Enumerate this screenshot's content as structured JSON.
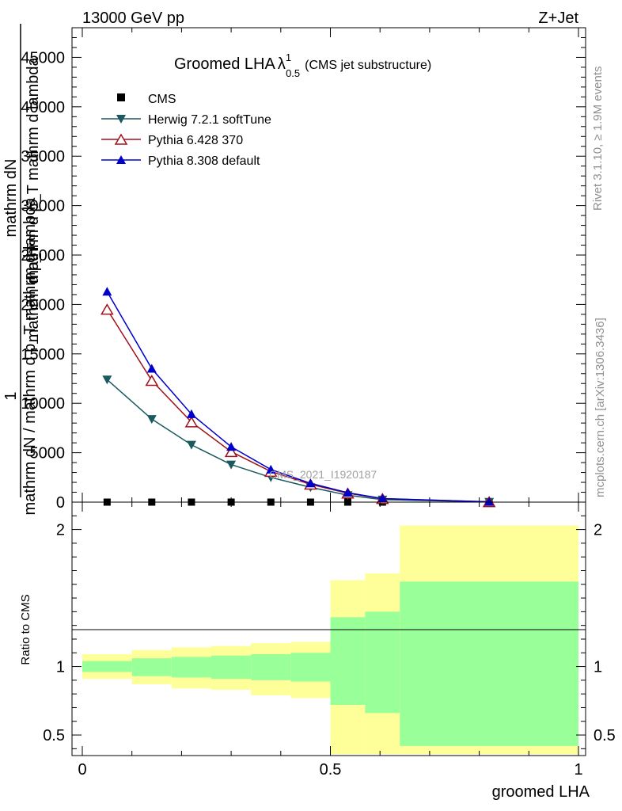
{
  "header": {
    "left": "13000 GeV pp",
    "right": "Z+Jet"
  },
  "chart_data": [
    {
      "type": "line",
      "title": "Groomed LHA",
      "title_lambda": "λ",
      "title_sup": "1",
      "title_sub": "0.5",
      "subtitle": "(CMS jet substructure)",
      "ylabel_lines": [
        "mathrm dN",
        "mathrm d p_T mathrm d lambda",
        "1",
        "mathrm dN / mathrm d p_T mathrm d lambda",
        "mathrm d p_T"
      ],
      "ylim": [
        0,
        48000
      ],
      "xlim": [
        0,
        1
      ],
      "yticks": [
        0,
        5000,
        10000,
        15000,
        20000,
        25000,
        30000,
        35000,
        40000,
        45000
      ],
      "ytick_labels": [
        "0",
        "5000",
        "10000",
        "15000",
        "20000",
        "25000",
        "30000",
        "35000",
        "40000",
        "45000"
      ],
      "analysis_label": "CMS_2021_I1920187",
      "legend_position": "top-left",
      "series": [
        {
          "name": "CMS",
          "marker": "square",
          "color": "#000000",
          "x": [
            0.05,
            0.14,
            0.22,
            0.3,
            0.38,
            0.46,
            0.535,
            0.605,
            0.82
          ],
          "values": [
            0,
            0,
            0,
            0,
            0,
            0,
            0,
            0,
            0
          ]
        },
        {
          "name": "Herwig 7.2.1 softTune",
          "marker": "triangle-down",
          "color": "#1a5a5f",
          "x": [
            0.05,
            0.14,
            0.22,
            0.3,
            0.38,
            0.46,
            0.535,
            0.605,
            0.82
          ],
          "values": [
            12400,
            8400,
            5800,
            3800,
            2500,
            1500,
            700,
            250,
            20
          ]
        },
        {
          "name": "Pythia 6.428 370",
          "marker": "triangle-up-open",
          "color": "#a0101a",
          "x": [
            0.05,
            0.14,
            0.22,
            0.3,
            0.38,
            0.46,
            0.535,
            0.605,
            0.82
          ],
          "values": [
            19500,
            12300,
            8100,
            5100,
            3100,
            1800,
            900,
            350,
            30
          ]
        },
        {
          "name": "Pythia 8.308 default",
          "marker": "triangle-up",
          "color": "#0000cc",
          "x": [
            0.05,
            0.14,
            0.22,
            0.3,
            0.38,
            0.46,
            0.535,
            0.605,
            0.82
          ],
          "values": [
            21300,
            13500,
            8900,
            5600,
            3300,
            1900,
            950,
            360,
            30
          ]
        }
      ]
    },
    {
      "type": "area",
      "ylabel": "Ratio to CMS",
      "xlabel": "groomed LHA",
      "ylim": [
        0.35,
        2.2
      ],
      "xlim": [
        0,
        1
      ],
      "yticks": [
        0.5,
        1,
        2
      ],
      "ytick_labels": [
        "0.5",
        "1",
        "2"
      ],
      "xticks": [
        0,
        0.5,
        1
      ],
      "xtick_labels": [
        "0",
        "0.5",
        "1"
      ],
      "bins": [
        0,
        0.1,
        0.18,
        0.26,
        0.34,
        0.42,
        0.5,
        0.57,
        0.64,
        1.0
      ],
      "outer_band": {
        "color": "#ffff99",
        "lo": [
          0.91,
          0.87,
          0.84,
          0.83,
          0.79,
          0.77,
          0.36,
          0.36,
          0.36
        ],
        "hi": [
          1.09,
          1.12,
          1.14,
          1.15,
          1.17,
          1.18,
          1.63,
          1.68,
          2.03
        ]
      },
      "inner_band": {
        "color": "#99ff99",
        "lo": [
          0.96,
          0.93,
          0.92,
          0.91,
          0.9,
          0.89,
          0.72,
          0.66,
          0.42
        ],
        "hi": [
          1.04,
          1.06,
          1.07,
          1.08,
          1.09,
          1.1,
          1.36,
          1.4,
          1.62
        ]
      }
    }
  ],
  "side_labels": {
    "upper": "Rivet 3.1.10, ≥ 1.9M events",
    "lower": "mcplots.cern.ch [arXiv:1306.3436]"
  }
}
